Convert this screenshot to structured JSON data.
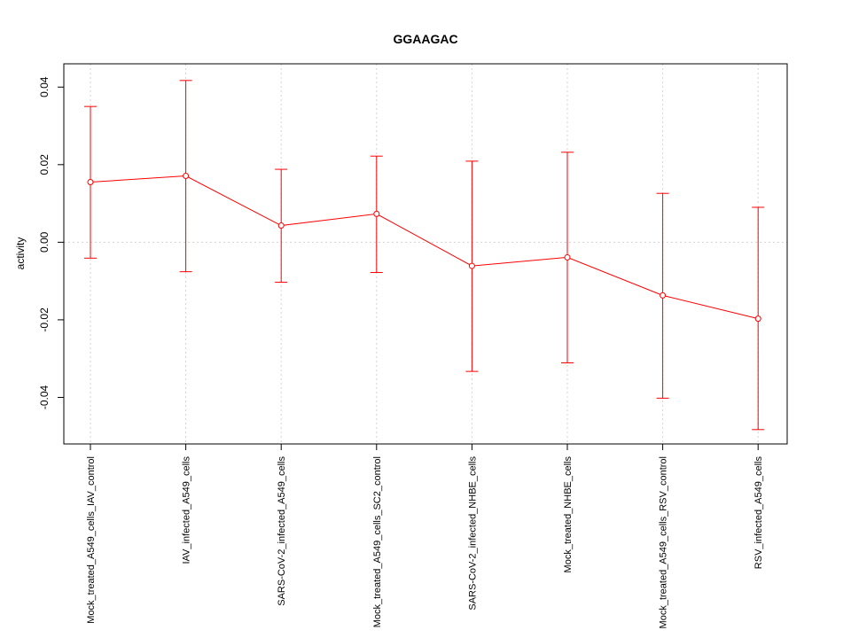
{
  "chart_data": {
    "type": "line",
    "title": "GGAAGAC",
    "xlabel": "",
    "ylabel": "activity",
    "ylim": [
      -0.052,
      0.046
    ],
    "yticks": [
      0.04,
      0.02,
      0.0,
      -0.02,
      -0.04
    ],
    "ytick_labels": [
      "0.04",
      "0.02",
      "0.00",
      "-0.02",
      "-0.04"
    ],
    "grid": true,
    "categories": [
      "Mock_treated_A549_cells_IAV_control",
      "IAV_infected_A549_cells",
      "SARS-CoV-2_infected_A549_cells",
      "Mock_treated_A549_cells_SC2_control",
      "SARS-CoV-2_infected_NHBE_cells",
      "Mock_treated_NHBE_cells",
      "Mock_treated_A549_cells_RSV_control",
      "RSV_infected_A549_cells"
    ],
    "series": [
      {
        "values": [
          0.0155,
          0.0171,
          0.0043,
          0.0073,
          -0.0061,
          -0.0039,
          -0.0137,
          -0.0197
        ],
        "error_upper": [
          0.035,
          0.0417,
          0.0188,
          0.0222,
          0.0209,
          0.0232,
          0.0126,
          0.009
        ],
        "error_lower": [
          -0.0041,
          -0.0076,
          -0.0103,
          -0.0078,
          -0.0333,
          -0.0311,
          -0.0402,
          -0.0483
        ],
        "color": "#ff0000"
      }
    ]
  }
}
